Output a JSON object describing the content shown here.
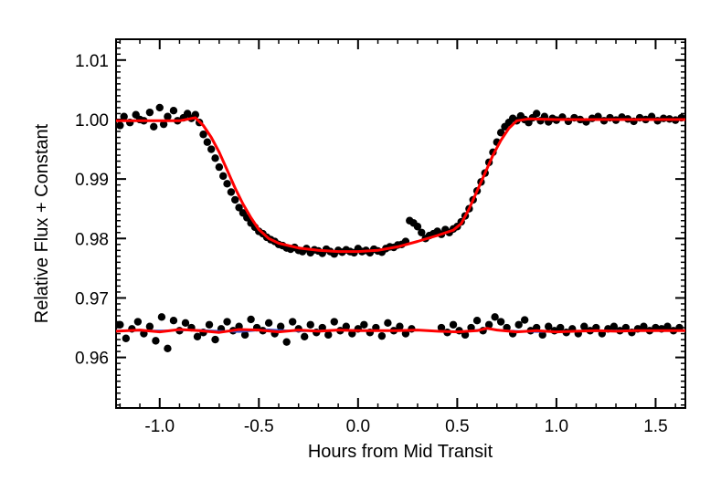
{
  "chart_data": {
    "type": "scatter",
    "title": "",
    "xlabel": "Hours from Mid Transit",
    "ylabel": "Relative Flux + Constant",
    "xlim": [
      -1.22,
      1.65
    ],
    "ylim": [
      0.9515,
      1.0135
    ],
    "x_ticks": [
      -1.0,
      -0.5,
      0.0,
      0.5,
      1.0,
      1.5
    ],
    "x_tick_labels": [
      "-1.0",
      "-0.5",
      "0.0",
      "0.5",
      "1.0",
      "1.5"
    ],
    "y_ticks": [
      0.96,
      0.97,
      0.98,
      0.99,
      1.0,
      1.01
    ],
    "y_tick_labels": [
      "0.96",
      "0.97",
      "0.98",
      "0.99",
      "1.00",
      "1.01"
    ],
    "grid": false,
    "legend": "none",
    "colors": {
      "points": "#000000",
      "model": "#ff0000",
      "residual_trend": "#3355cc"
    },
    "series": [
      {
        "role": "light-curve",
        "kind": "points",
        "x": [
          -1.2,
          -1.18,
          -1.15,
          -1.12,
          -1.1,
          -1.08,
          -1.05,
          -1.03,
          -1.0,
          -0.98,
          -0.96,
          -0.93,
          -0.91,
          -0.88,
          -0.86,
          -0.84,
          -0.82,
          -0.8,
          -0.78,
          -0.76,
          -0.74,
          -0.72,
          -0.7,
          -0.68,
          -0.66,
          -0.64,
          -0.62,
          -0.6,
          -0.58,
          -0.56,
          -0.54,
          -0.52,
          -0.5,
          -0.48,
          -0.46,
          -0.44,
          -0.42,
          -0.4,
          -0.38,
          -0.36,
          -0.34,
          -0.32,
          -0.3,
          -0.28,
          -0.26,
          -0.24,
          -0.22,
          -0.2,
          -0.18,
          -0.16,
          -0.14,
          -0.12,
          -0.1,
          -0.08,
          -0.06,
          -0.04,
          -0.02,
          0.0,
          0.02,
          0.04,
          0.06,
          0.08,
          0.1,
          0.12,
          0.14,
          0.16,
          0.18,
          0.2,
          0.22,
          0.24,
          0.26,
          0.28,
          0.3,
          0.32,
          0.34,
          0.36,
          0.38,
          0.4,
          0.42,
          0.44,
          0.46,
          0.48,
          0.5,
          0.52,
          0.54,
          0.56,
          0.58,
          0.6,
          0.62,
          0.64,
          0.66,
          0.68,
          0.7,
          0.72,
          0.74,
          0.76,
          0.78,
          0.8,
          0.82,
          0.84,
          0.86,
          0.88,
          0.9,
          0.92,
          0.94,
          0.96,
          0.98,
          1.0,
          1.03,
          1.06,
          1.09,
          1.12,
          1.15,
          1.18,
          1.21,
          1.24,
          1.27,
          1.3,
          1.33,
          1.36,
          1.39,
          1.42,
          1.45,
          1.48,
          1.51,
          1.54,
          1.57,
          1.6,
          1.63
        ],
        "y": [
          0.999,
          1.0005,
          0.9995,
          1.0008,
          1.0,
          0.9998,
          1.0012,
          0.9988,
          1.002,
          0.9992,
          1.0005,
          1.0015,
          0.9998,
          1.0003,
          1.001,
          1.0002,
          1.0008,
          0.9995,
          0.9975,
          0.9962,
          0.995,
          0.9935,
          0.992,
          0.9905,
          0.9892,
          0.9878,
          0.9865,
          0.9852,
          0.9843,
          0.9835,
          0.9826,
          0.9819,
          0.9812,
          0.9808,
          0.9802,
          0.9798,
          0.9795,
          0.979,
          0.9788,
          0.9784,
          0.9782,
          0.9785,
          0.978,
          0.9778,
          0.9783,
          0.9776,
          0.9781,
          0.9779,
          0.9775,
          0.9782,
          0.9778,
          0.9774,
          0.978,
          0.9777,
          0.9781,
          0.9778,
          0.9776,
          0.9783,
          0.9778,
          0.978,
          0.9776,
          0.9782,
          0.9779,
          0.9777,
          0.9783,
          0.9786,
          0.9785,
          0.9789,
          0.979,
          0.9795,
          0.983,
          0.9826,
          0.982,
          0.981,
          0.98,
          0.9805,
          0.9808,
          0.9812,
          0.9807,
          0.9815,
          0.981,
          0.9816,
          0.982,
          0.9828,
          0.9838,
          0.985,
          0.9865,
          0.988,
          0.9895,
          0.991,
          0.9928,
          0.9945,
          0.9962,
          0.9978,
          0.9988,
          0.9995,
          1.0002,
          0.9998,
          1.0006,
          1.0,
          0.9995,
          1.0003,
          1.001,
          0.9998,
          1.0005,
          0.9996,
          1.0002,
          0.9999,
          1.0004,
          0.9997,
          1.0003,
          1.0,
          0.9996,
          1.0002,
          1.0005,
          0.9998,
          1.0003,
          0.9999,
          1.0004,
          1.0001,
          0.9997,
          1.0003,
          1.0,
          1.0005,
          0.9998,
          1.0002,
          1.0001,
          0.9999,
          1.0003
        ]
      },
      {
        "role": "transit-model",
        "kind": "line",
        "x": [
          -1.22,
          -0.9,
          -0.82,
          -0.78,
          -0.74,
          -0.7,
          -0.66,
          -0.62,
          -0.58,
          -0.54,
          -0.5,
          -0.45,
          -0.4,
          -0.3,
          -0.2,
          -0.1,
          0.0,
          0.1,
          0.2,
          0.3,
          0.4,
          0.48,
          0.52,
          0.56,
          0.6,
          0.64,
          0.68,
          0.72,
          0.76,
          0.8,
          0.86,
          1.0,
          1.2,
          1.4,
          1.65
        ],
        "y": [
          0.9998,
          0.9998,
          1.0003,
          0.999,
          0.997,
          0.9945,
          0.9915,
          0.9885,
          0.9858,
          0.9835,
          0.9815,
          0.98,
          0.9792,
          0.9784,
          0.978,
          0.9778,
          0.9778,
          0.978,
          0.9786,
          0.9795,
          0.9805,
          0.9814,
          0.9825,
          0.985,
          0.988,
          0.991,
          0.994,
          0.9965,
          0.9985,
          0.9998,
          1.0001,
          1.0,
          1.0,
          1.0,
          1.0
        ]
      },
      {
        "role": "residuals",
        "kind": "points",
        "x": [
          -1.2,
          -1.17,
          -1.14,
          -1.11,
          -1.08,
          -1.05,
          -1.02,
          -0.99,
          -0.96,
          -0.93,
          -0.9,
          -0.87,
          -0.84,
          -0.81,
          -0.78,
          -0.75,
          -0.72,
          -0.69,
          -0.66,
          -0.63,
          -0.6,
          -0.57,
          -0.54,
          -0.51,
          -0.48,
          -0.45,
          -0.42,
          -0.39,
          -0.36,
          -0.33,
          -0.3,
          -0.27,
          -0.24,
          -0.21,
          -0.18,
          -0.15,
          -0.12,
          -0.09,
          -0.06,
          -0.03,
          0.0,
          0.03,
          0.06,
          0.09,
          0.12,
          0.15,
          0.18,
          0.21,
          0.24,
          0.27,
          0.42,
          0.45,
          0.48,
          0.51,
          0.54,
          0.57,
          0.6,
          0.63,
          0.66,
          0.69,
          0.72,
          0.75,
          0.78,
          0.81,
          0.84,
          0.87,
          0.9,
          0.93,
          0.96,
          0.99,
          1.02,
          1.05,
          1.08,
          1.11,
          1.14,
          1.17,
          1.2,
          1.23,
          1.26,
          1.29,
          1.32,
          1.35,
          1.38,
          1.41,
          1.44,
          1.47,
          1.5,
          1.53,
          1.56,
          1.59,
          1.62
        ],
        "y": [
          0.9655,
          0.9632,
          0.9648,
          0.966,
          0.964,
          0.9652,
          0.9628,
          0.9668,
          0.9615,
          0.9662,
          0.9645,
          0.9658,
          0.965,
          0.9635,
          0.9642,
          0.9655,
          0.963,
          0.9648,
          0.966,
          0.9645,
          0.9652,
          0.9638,
          0.9664,
          0.965,
          0.9645,
          0.9658,
          0.964,
          0.9652,
          0.9626,
          0.966,
          0.9648,
          0.9635,
          0.9655,
          0.9642,
          0.965,
          0.9638,
          0.966,
          0.9645,
          0.9652,
          0.964,
          0.9648,
          0.9655,
          0.9642,
          0.965,
          0.9636,
          0.9658,
          0.9645,
          0.9652,
          0.964,
          0.9648,
          0.965,
          0.9642,
          0.9655,
          0.9645,
          0.9638,
          0.965,
          0.9662,
          0.9645,
          0.9655,
          0.9668,
          0.966,
          0.965,
          0.964,
          0.9655,
          0.9663,
          0.9645,
          0.965,
          0.9638,
          0.9652,
          0.9645,
          0.965,
          0.9642,
          0.9648,
          0.964,
          0.9652,
          0.9645,
          0.965,
          0.964,
          0.9648,
          0.9652,
          0.9645,
          0.965,
          0.9642,
          0.9648,
          0.9652,
          0.9645,
          0.965,
          0.9648,
          0.9652,
          0.9645,
          0.965
        ]
      },
      {
        "role": "residual-trend",
        "kind": "line",
        "x": [
          -1.22,
          -1.0,
          -0.8,
          -0.6,
          -0.45,
          -0.3,
          -0.1,
          0.1,
          0.3,
          0.45,
          0.55,
          0.65,
          0.75,
          0.9,
          1.1,
          1.3,
          1.5,
          1.65
        ],
        "y": [
          0.9645,
          0.9645,
          0.9646,
          0.9643,
          0.9647,
          0.9644,
          0.9646,
          0.9645,
          0.9646,
          0.9643,
          0.9644,
          0.9648,
          0.9645,
          0.9643,
          0.9644,
          0.9645,
          0.9645,
          0.9645
        ]
      },
      {
        "role": "residual-model",
        "kind": "line",
        "x": [
          -1.22,
          -1.1,
          -1.0,
          -0.9,
          -0.8,
          -0.7,
          -0.6,
          -0.5,
          -0.4,
          -0.3,
          -0.2,
          -0.1,
          0.0,
          0.1,
          0.2,
          0.3,
          0.4,
          0.5,
          0.6,
          0.65,
          0.7,
          0.8,
          0.9,
          1.0,
          1.1,
          1.2,
          1.3,
          1.4,
          1.5,
          1.65
        ],
        "y": [
          0.9644,
          0.9646,
          0.9643,
          0.9647,
          0.9645,
          0.9642,
          0.9647,
          0.9646,
          0.9643,
          0.9646,
          0.9644,
          0.9646,
          0.9645,
          0.9645,
          0.9645,
          0.9646,
          0.9644,
          0.9643,
          0.9645,
          0.9649,
          0.9646,
          0.9643,
          0.9645,
          0.9643,
          0.9644,
          0.9645,
          0.9644,
          0.9645,
          0.9645,
          0.9645
        ]
      }
    ]
  }
}
